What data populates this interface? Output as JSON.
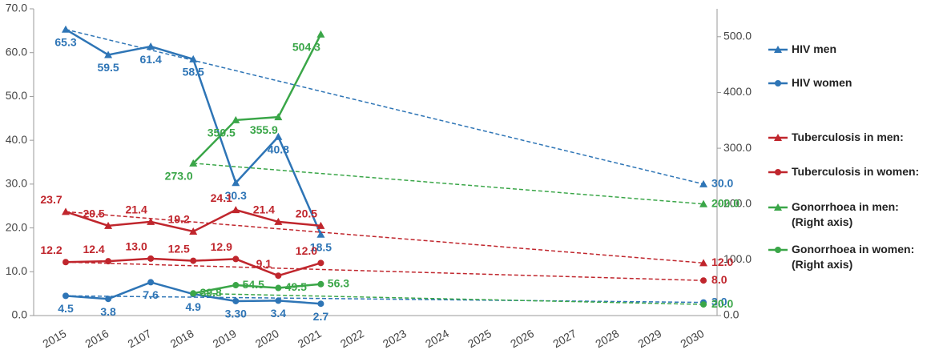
{
  "chart_data": {
    "type": "line",
    "categories": [
      "2015",
      "2016",
      "2107",
      "2018",
      "2019",
      "2020",
      "2021",
      "2022",
      "2023",
      "2024",
      "2025",
      "2026",
      "2027",
      "2028",
      "2029",
      "2030"
    ],
    "ylim": [
      0,
      70
    ],
    "yticks": [
      {
        "value": 0,
        "label": "0.0"
      },
      {
        "value": 10,
        "label": "10.0"
      },
      {
        "value": 20,
        "label": "20.0"
      },
      {
        "value": 30,
        "label": "30.0"
      },
      {
        "value": 40,
        "label": "40.0"
      },
      {
        "value": 50,
        "label": "50.0"
      },
      {
        "value": 60,
        "label": "60.0"
      },
      {
        "value": 70,
        "label": "70.0"
      }
    ],
    "y2lim": [
      0,
      550
    ],
    "y2ticks": [
      {
        "value": 0,
        "label": "0.0"
      },
      {
        "value": 100,
        "label": "100.0"
      },
      {
        "value": 200,
        "label": "200.0"
      },
      {
        "value": 300,
        "label": "300.0"
      },
      {
        "value": 400,
        "label": "400.0"
      },
      {
        "value": 500,
        "label": "500.0"
      }
    ],
    "series": [
      {
        "name": "HIV men",
        "color": "#2e75b6",
        "marker": "triangle",
        "values": [
          65.3,
          59.5,
          61.4,
          58.5,
          30.3,
          40.8,
          18.5,
          null,
          null,
          null,
          null,
          null,
          null,
          null,
          null,
          30.0
        ],
        "value_labels": [
          "65.3",
          "59.5",
          "61.4",
          "58.5",
          "30.3",
          "40.8",
          "18.5",
          null,
          null,
          null,
          null,
          null,
          null,
          null,
          null,
          "30.0"
        ]
      },
      {
        "name": "HIV women",
        "color": "#2e75b6",
        "marker": "circle",
        "values": [
          4.5,
          3.8,
          7.6,
          4.9,
          3.3,
          3.4,
          2.7,
          null,
          null,
          null,
          null,
          null,
          null,
          null,
          null,
          3.0
        ],
        "value_labels": [
          "4.5",
          "3.8",
          "7.6",
          "4.9",
          "3.30",
          "3.4",
          "2.7",
          null,
          null,
          null,
          null,
          null,
          null,
          null,
          null,
          "3.0"
        ]
      },
      {
        "name": "Tuberculosis in men:",
        "color": "#c0262d",
        "marker": "triangle",
        "values": [
          23.7,
          20.5,
          21.4,
          19.2,
          24.1,
          21.4,
          20.5,
          null,
          null,
          null,
          null,
          null,
          null,
          null,
          null,
          12.0
        ],
        "value_labels": [
          "23.7",
          "20.5",
          "21.4",
          "19.2",
          "24.1",
          "21.4",
          "20.5",
          null,
          null,
          null,
          null,
          null,
          null,
          null,
          null,
          "12.0"
        ]
      },
      {
        "name": "Tuberculosis in women:",
        "color": "#c0262d",
        "marker": "circle",
        "values": [
          12.2,
          12.4,
          13.0,
          12.5,
          12.9,
          9.1,
          12.0,
          null,
          null,
          null,
          null,
          null,
          null,
          null,
          null,
          8.0
        ],
        "value_labels": [
          "12.2",
          "12.4",
          "13.0",
          "12.5",
          "12.9",
          "9.1",
          "12.0",
          null,
          null,
          null,
          null,
          null,
          null,
          null,
          null,
          "8.0"
        ]
      },
      {
        "name": "Gonorrhoea in men:\n(Right axis)",
        "color": "#3aa648",
        "marker": "triangle",
        "axis": "y2",
        "values": [
          null,
          null,
          null,
          273.0,
          350.5,
          355.9,
          504.3,
          null,
          null,
          null,
          null,
          null,
          null,
          null,
          null,
          200.0
        ],
        "value_labels": [
          null,
          null,
          null,
          "273.0",
          "350.5",
          "355.9",
          "504.3",
          null,
          null,
          null,
          null,
          null,
          null,
          null,
          null,
          "200.0"
        ]
      },
      {
        "name": "Gonorrhoea in women:\n(Right axis)",
        "color": "#3aa648",
        "marker": "circle",
        "axis": "y2",
        "values": [
          null,
          null,
          null,
          39.8,
          54.5,
          49.5,
          56.3,
          null,
          null,
          null,
          null,
          null,
          null,
          null,
          null,
          20.0
        ],
        "value_labels": [
          null,
          null,
          null,
          "39.8",
          "54.5",
          "49.5",
          "56.3",
          null,
          null,
          null,
          null,
          null,
          null,
          null,
          null,
          "20.0"
        ]
      }
    ]
  }
}
